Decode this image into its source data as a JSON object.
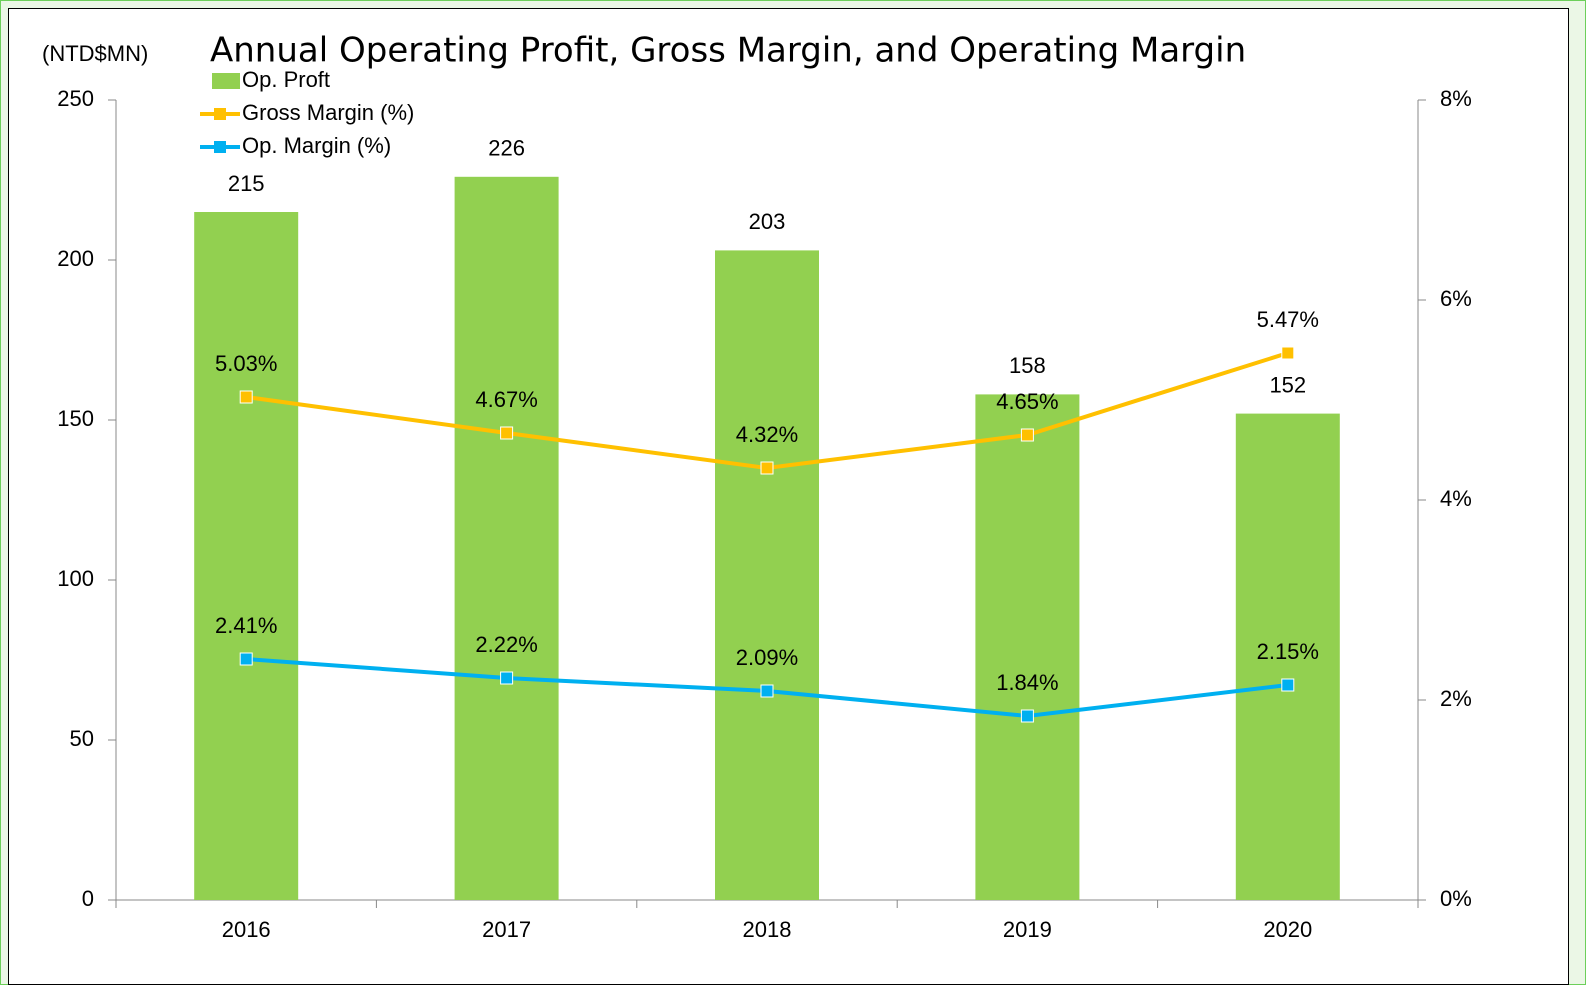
{
  "chart_data": {
    "type": "bar_line",
    "title": "Annual Operating Profit, Gross Margin, and Operating Margin",
    "ylabel": "(NTD$MN)",
    "categories": [
      "2016",
      "2017",
      "2018",
      "2019",
      "2020"
    ],
    "ylim": [
      0,
      250
    ],
    "yticks": [
      0,
      50,
      100,
      150,
      200,
      250
    ],
    "y2lim": [
      0,
      8
    ],
    "y2ticks": [
      {
        "value": 0,
        "label": "0%"
      },
      {
        "value": 2,
        "label": "2%"
      },
      {
        "value": 4,
        "label": "4%"
      },
      {
        "value": 6,
        "label": "6%"
      },
      {
        "value": 8,
        "label": "8%"
      }
    ],
    "legend": "upper left",
    "series": [
      {
        "name": "Op. Proft",
        "type": "bar",
        "color": "#92d050",
        "values": [
          215,
          226,
          203,
          158,
          152
        ]
      },
      {
        "name": "Gross Margin (%)",
        "type": "line",
        "axis": "y2",
        "color": "#ffc000",
        "values": [
          5.03,
          4.67,
          4.32,
          4.65,
          5.47
        ],
        "value_labels": [
          "5.03%",
          "4.67%",
          "4.32%",
          "4.65%",
          "5.47%"
        ]
      },
      {
        "name": "Op. Margin (%)",
        "type": "line",
        "axis": "y2",
        "color": "#00b0f0",
        "values": [
          2.41,
          2.22,
          2.09,
          1.84,
          2.15
        ],
        "value_labels": [
          "2.41%",
          "2.22%",
          "2.09%",
          "1.84%",
          "2.15%"
        ]
      }
    ]
  }
}
